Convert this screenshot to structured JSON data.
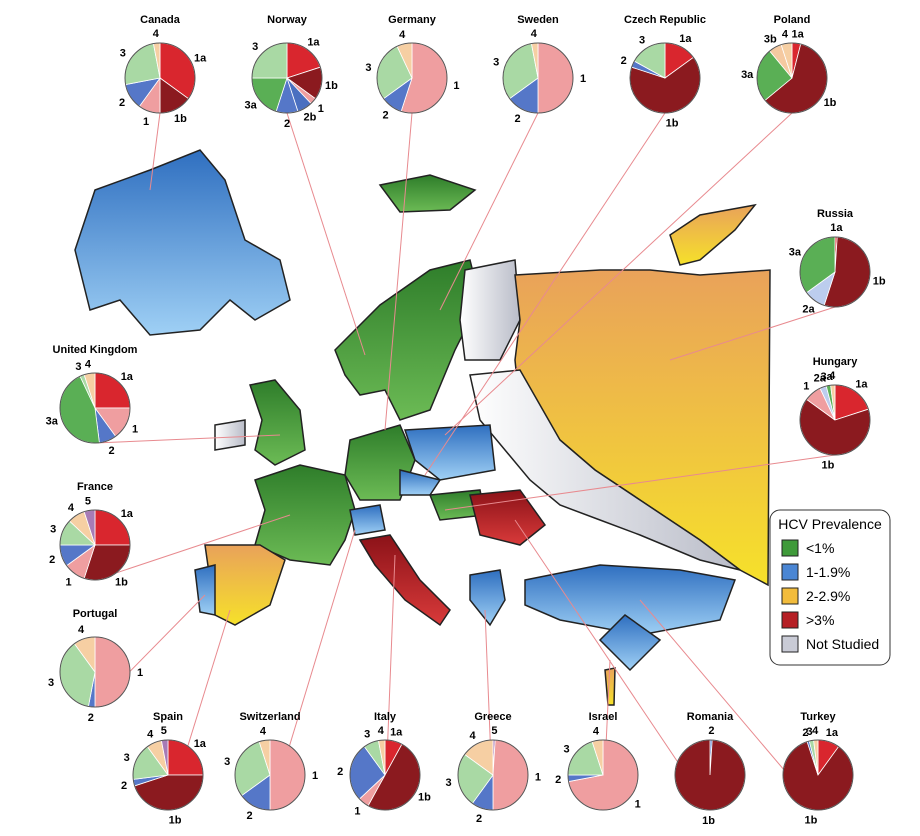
{
  "legend": {
    "title": "HCV Prevalence",
    "items": [
      {
        "label": "<1%",
        "color": "#3f9a3a"
      },
      {
        "label": "1-1.9%",
        "color": "#4a86d4"
      },
      {
        "label": "2-2.9%",
        "color": "#f2bc3c"
      },
      {
        "label": ">3%",
        "color": "#b51f25"
      },
      {
        "label": "Not Studied",
        "color": "#c9cbd6"
      }
    ]
  },
  "genotype_colors": {
    "1a": "#d9262e",
    "1b": "#8b1a1f",
    "1": "#ef9ea0",
    "2": "#5577c8",
    "2a": "#bccdee",
    "2b": "#4a6fc0",
    "3": "#a9d9a4",
    "3a": "#5aaf55",
    "3b": "#f5c9a0",
    "4": "#f6cfa3",
    "5": "#a77bb5"
  },
  "pies": [
    {
      "country": "Canada",
      "slices": [
        {
          "label": "1a",
          "value": 35
        },
        {
          "label": "1b",
          "value": 15
        },
        {
          "label": "1",
          "value": 10
        },
        {
          "label": "2",
          "value": 12
        },
        {
          "label": "3",
          "value": 25
        },
        {
          "label": "4",
          "value": 3
        }
      ]
    },
    {
      "country": "Norway",
      "slices": [
        {
          "label": "1a",
          "value": 20
        },
        {
          "label": "1b",
          "value": 15
        },
        {
          "label": "1",
          "value": 3
        },
        {
          "label": "2b",
          "value": 7
        },
        {
          "label": "2",
          "value": 10
        },
        {
          "label": "3a",
          "value": 20
        },
        {
          "label": "3",
          "value": 25
        }
      ]
    },
    {
      "country": "Germany",
      "slices": [
        {
          "label": "1",
          "value": 55
        },
        {
          "label": "2",
          "value": 10
        },
        {
          "label": "3",
          "value": 28
        },
        {
          "label": "4",
          "value": 7
        }
      ]
    },
    {
      "country": "Sweden",
      "slices": [
        {
          "label": "1",
          "value": 50
        },
        {
          "label": "2",
          "value": 15
        },
        {
          "label": "3",
          "value": 32
        },
        {
          "label": "4",
          "value": 3
        }
      ]
    },
    {
      "country": "Czech Republic",
      "slices": [
        {
          "label": "1a",
          "value": 15
        },
        {
          "label": "1b",
          "value": 65
        },
        {
          "label": "2",
          "value": 3
        },
        {
          "label": "3",
          "value": 17
        }
      ]
    },
    {
      "country": "Poland",
      "slices": [
        {
          "label": "1a",
          "value": 4
        },
        {
          "label": "1b",
          "value": 60
        },
        {
          "label": "3a",
          "value": 25
        },
        {
          "label": "3b",
          "value": 6
        },
        {
          "label": "4",
          "value": 5
        }
      ]
    },
    {
      "country": "Russia",
      "slices": [
        {
          "label": "1a",
          "value": 1
        },
        {
          "label": "1b",
          "value": 54
        },
        {
          "label": "2a",
          "value": 10
        },
        {
          "label": "3a",
          "value": 35
        }
      ]
    },
    {
      "country": "Hungary",
      "slices": [
        {
          "label": "1a",
          "value": 20
        },
        {
          "label": "1b",
          "value": 65
        },
        {
          "label": "1",
          "value": 8
        },
        {
          "label": "2a",
          "value": 3
        },
        {
          "label": "3a",
          "value": 2
        },
        {
          "label": "4",
          "value": 2
        }
      ]
    },
    {
      "country": "United Kingdom",
      "slices": [
        {
          "label": "1a",
          "value": 25
        },
        {
          "label": "1",
          "value": 15
        },
        {
          "label": "2",
          "value": 8
        },
        {
          "label": "3a",
          "value": 45
        },
        {
          "label": "3",
          "value": 2
        },
        {
          "label": "4",
          "value": 5
        }
      ]
    },
    {
      "country": "France",
      "slices": [
        {
          "label": "1a",
          "value": 25
        },
        {
          "label": "1b",
          "value": 30
        },
        {
          "label": "1",
          "value": 10
        },
        {
          "label": "2",
          "value": 10
        },
        {
          "label": "3",
          "value": 12
        },
        {
          "label": "4",
          "value": 8
        },
        {
          "label": "5",
          "value": 5
        }
      ]
    },
    {
      "country": "Portugal",
      "slices": [
        {
          "label": "1",
          "value": 50
        },
        {
          "label": "2",
          "value": 3
        },
        {
          "label": "3",
          "value": 37
        },
        {
          "label": "4",
          "value": 10
        }
      ]
    },
    {
      "country": "Spain",
      "slices": [
        {
          "label": "1a",
          "value": 25
        },
        {
          "label": "1b",
          "value": 45
        },
        {
          "label": "2",
          "value": 3
        },
        {
          "label": "3",
          "value": 17
        },
        {
          "label": "4",
          "value": 7
        },
        {
          "label": "5",
          "value": 3
        }
      ]
    },
    {
      "country": "Switzerland",
      "slices": [
        {
          "label": "1",
          "value": 50
        },
        {
          "label": "2",
          "value": 15
        },
        {
          "label": "3",
          "value": 30
        },
        {
          "label": "4",
          "value": 5
        }
      ]
    },
    {
      "country": "Italy",
      "slices": [
        {
          "label": "1a",
          "value": 8
        },
        {
          "label": "1b",
          "value": 50
        },
        {
          "label": "1",
          "value": 5
        },
        {
          "label": "2",
          "value": 27
        },
        {
          "label": "3",
          "value": 7
        },
        {
          "label": "4",
          "value": 3
        }
      ]
    },
    {
      "country": "Greece",
      "slices": [
        {
          "label": "5",
          "value": 1
        },
        {
          "label": "1",
          "value": 49
        },
        {
          "label": "2",
          "value": 10
        },
        {
          "label": "3",
          "value": 25
        },
        {
          "label": "4",
          "value": 15
        }
      ]
    },
    {
      "country": "Israel",
      "slices": [
        {
          "label": "1",
          "value": 72
        },
        {
          "label": "2",
          "value": 3
        },
        {
          "label": "3",
          "value": 20
        },
        {
          "label": "4",
          "value": 5
        }
      ]
    },
    {
      "country": "Romania",
      "slices": [
        {
          "label": "2",
          "value": 1
        },
        {
          "label": "1b",
          "value": 99
        }
      ]
    },
    {
      "country": "Turkey",
      "slices": [
        {
          "label": "1a",
          "value": 10
        },
        {
          "label": "1b",
          "value": 85
        },
        {
          "label": "2",
          "value": 1
        },
        {
          "label": "3",
          "value": 2
        },
        {
          "label": "4",
          "value": 2
        }
      ]
    }
  ]
}
